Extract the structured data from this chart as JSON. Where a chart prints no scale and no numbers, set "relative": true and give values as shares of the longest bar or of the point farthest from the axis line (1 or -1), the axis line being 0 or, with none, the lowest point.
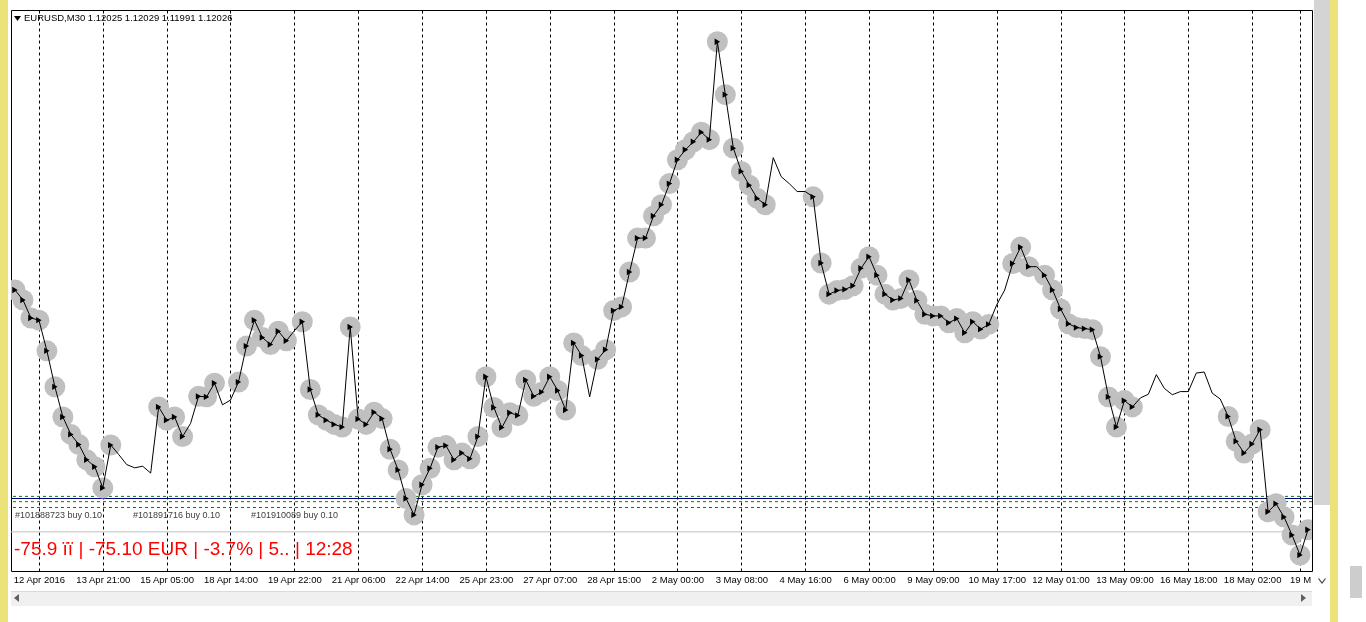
{
  "chart_data": {
    "type": "line",
    "relative": true,
    "grid": "x",
    "title": "EURUSD,M30 1.12025 1.12029 1.11991 1.12026",
    "annotations": [
      "-75.9 ïï | -75.10 EUR | -3.7% | 5.. | 12:28"
    ],
    "categories": [
      null,
      null,
      null,
      "12 Apr 2016",
      null,
      null,
      null,
      null,
      null,
      null,
      null,
      "13 Apr 21:00",
      null,
      null,
      null,
      null,
      null,
      null,
      null,
      "15 Apr 05:00",
      null,
      null,
      null,
      null,
      null,
      null,
      null,
      "18 Apr 14:00",
      null,
      null,
      null,
      null,
      null,
      null,
      null,
      "19 Apr 22:00",
      null,
      null,
      null,
      null,
      null,
      null,
      null,
      "21 Apr 06:00",
      null,
      null,
      null,
      null,
      null,
      null,
      null,
      "22 Apr 14:00",
      null,
      null,
      null,
      null,
      null,
      null,
      null,
      "25 Apr 23:00",
      null,
      null,
      null,
      null,
      null,
      null,
      null,
      "27 Apr 07:00",
      null,
      null,
      null,
      null,
      null,
      null,
      null,
      "28 Apr 15:00",
      null,
      null,
      null,
      null,
      null,
      null,
      null,
      "2 May 00:00",
      null,
      null,
      null,
      null,
      null,
      null,
      null,
      "3 May 08:00",
      null,
      null,
      null,
      null,
      null,
      null,
      null,
      "4 May 16:00",
      null,
      null,
      null,
      null,
      null,
      null,
      null,
      "6 May 00:00",
      null,
      null,
      null,
      null,
      null,
      null,
      null,
      "9 May 09:00",
      null,
      null,
      null,
      null,
      null,
      null,
      null,
      "10 May 17:00",
      null,
      null,
      null,
      null,
      null,
      null,
      null,
      "12 May 01:00",
      null,
      null,
      null,
      null,
      null,
      null,
      null,
      "13 May 09:00",
      null,
      null,
      null,
      null,
      null,
      null,
      null,
      "16 May 18:00",
      null,
      null,
      null,
      null,
      null,
      null,
      null,
      "18 May 02:00",
      null,
      null,
      null,
      null,
      null,
      "19 M",
      null
    ],
    "series": [
      {
        "type": "scatter",
        "color": "#c0c0c0",
        "marker": "circle",
        "values": [
          0.531,
          0.512,
          0.478,
          0.474,
          0.416,
          0.348,
          0.291,
          0.258,
          0.239,
          0.21,
          0.197,
          0.157,
          0.238,
          null,
          null,
          null,
          null,
          null,
          0.31,
          0.285,
          0.291,
          0.254,
          null,
          0.33,
          0.329,
          0.355,
          null,
          null,
          0.357,
          0.425,
          0.474,
          0.441,
          0.428,
          0.453,
          0.435,
          null,
          0.471,
          0.343,
          0.295,
          0.285,
          0.277,
          0.272,
          0.461,
          0.287,
          0.277,
          0.3,
          0.288,
          0.23,
          0.191,
          0.137,
          0.106,
          0.163,
          0.194,
          0.234,
          0.237,
          0.21,
          0.223,
          0.212,
          0.254,
          0.367,
          0.309,
          0.271,
          0.299,
          0.294,
          0.361,
          0.33,
          0.338,
          0.367,
          0.341,
          0.304,
          0.431,
          0.407,
          null,
          0.4,
          0.418,
          0.492,
          0.499,
          0.565,
          0.629,
          0.629,
          0.671,
          0.692,
          0.732,
          0.777,
          0.796,
          0.811,
          0.829,
          0.815,
          1.0,
          0.9,
          0.799,
          0.755,
          0.729,
          0.704,
          0.692,
          null,
          null,
          null,
          null,
          null,
          0.707,
          0.582,
          0.523,
          0.53,
          0.532,
          0.539,
          0.572,
          0.594,
          0.559,
          0.523,
          0.512,
          0.515,
          0.55,
          0.511,
          0.485,
          0.482,
          0.482,
          0.469,
          0.477,
          0.45,
          0.471,
          0.457,
          0.466,
          null,
          null,
          0.581,
          0.612,
          0.575,
          null,
          0.559,
          0.531,
          0.495,
          0.467,
          0.46,
          0.458,
          0.456,
          0.405,
          0.329,
          0.272,
          0.322,
          0.31,
          null,
          null,
          null,
          null,
          null,
          null,
          null,
          null,
          null,
          null,
          null,
          0.292,
          0.245,
          0.223,
          0.24,
          0.267,
          0.112,
          0.127,
          0.102,
          0.068,
          0.03,
          0.078
        ]
      },
      {
        "color": "#000000",
        "values": [
          0.531,
          0.512,
          0.478,
          0.474,
          0.416,
          0.348,
          0.291,
          0.258,
          0.239,
          0.21,
          0.197,
          0.157,
          0.238,
          0.22,
          0.201,
          0.195,
          0.198,
          0.185,
          0.31,
          0.285,
          0.291,
          0.254,
          0.279,
          0.33,
          0.329,
          0.355,
          0.314,
          0.323,
          0.357,
          0.425,
          0.474,
          0.441,
          0.428,
          0.453,
          0.435,
          0.454,
          0.471,
          0.343,
          0.295,
          0.285,
          0.277,
          0.272,
          0.461,
          0.287,
          0.277,
          0.3,
          0.288,
          0.23,
          0.191,
          0.137,
          0.106,
          0.163,
          0.194,
          0.234,
          0.237,
          0.21,
          0.223,
          0.212,
          0.254,
          0.367,
          0.309,
          0.271,
          0.299,
          0.294,
          0.361,
          0.33,
          0.338,
          0.367,
          0.341,
          0.304,
          0.431,
          0.407,
          0.329,
          0.4,
          0.418,
          0.492,
          0.499,
          0.565,
          0.629,
          0.629,
          0.671,
          0.692,
          0.732,
          0.777,
          0.796,
          0.811,
          0.829,
          0.815,
          1.0,
          0.9,
          0.799,
          0.755,
          0.729,
          0.704,
          0.692,
          0.781,
          0.745,
          0.732,
          0.717,
          0.717,
          0.707,
          0.582,
          0.523,
          0.53,
          0.532,
          0.539,
          0.572,
          0.594,
          0.559,
          0.523,
          0.512,
          0.515,
          0.55,
          0.511,
          0.485,
          0.482,
          0.482,
          0.469,
          0.477,
          0.45,
          0.471,
          0.457,
          0.466,
          0.503,
          0.531,
          0.581,
          0.612,
          0.575,
          0.575,
          0.559,
          0.531,
          0.495,
          0.467,
          0.46,
          0.458,
          0.456,
          0.405,
          0.329,
          0.272,
          0.322,
          0.31,
          0.327,
          0.334,
          0.371,
          0.345,
          0.333,
          0.339,
          0.339,
          0.374,
          0.376,
          0.336,
          0.325,
          0.292,
          0.245,
          0.223,
          0.24,
          0.267,
          0.112,
          0.127,
          0.102,
          0.068,
          0.03,
          0.078
        ]
      },
      {
        "type": "scatter",
        "color": "#000000",
        "marker": "triangle",
        "values": [
          0.531,
          0.512,
          0.478,
          0.474,
          0.416,
          0.348,
          0.291,
          0.258,
          0.239,
          0.21,
          0.197,
          0.157,
          0.238,
          null,
          null,
          null,
          null,
          null,
          0.31,
          0.285,
          0.291,
          0.254,
          null,
          0.33,
          0.329,
          0.355,
          null,
          null,
          0.357,
          0.425,
          0.474,
          0.441,
          0.428,
          0.453,
          0.435,
          null,
          0.471,
          0.343,
          0.295,
          0.285,
          0.277,
          0.272,
          0.461,
          0.287,
          0.277,
          0.3,
          0.288,
          0.23,
          0.191,
          0.137,
          0.106,
          0.163,
          0.194,
          0.234,
          0.237,
          0.21,
          0.223,
          0.212,
          0.254,
          0.367,
          0.309,
          0.271,
          0.299,
          0.294,
          0.361,
          0.33,
          0.338,
          0.367,
          0.341,
          0.304,
          0.431,
          0.407,
          null,
          0.4,
          0.418,
          0.492,
          0.499,
          0.565,
          0.629,
          0.629,
          0.671,
          0.692,
          0.732,
          0.777,
          0.796,
          0.811,
          0.829,
          0.815,
          1.0,
          0.9,
          0.799,
          0.755,
          0.729,
          0.704,
          0.692,
          null,
          null,
          null,
          null,
          null,
          0.707,
          0.582,
          0.523,
          0.53,
          0.532,
          0.539,
          0.572,
          0.594,
          0.559,
          0.523,
          0.512,
          0.515,
          0.55,
          0.511,
          0.485,
          0.482,
          0.482,
          0.469,
          0.477,
          0.45,
          0.471,
          0.457,
          0.466,
          null,
          null,
          0.581,
          0.612,
          0.575,
          null,
          0.559,
          0.531,
          0.495,
          0.467,
          0.46,
          0.458,
          0.456,
          0.405,
          0.329,
          0.272,
          0.322,
          0.31,
          null,
          null,
          null,
          null,
          null,
          null,
          null,
          null,
          null,
          null,
          null,
          0.292,
          0.245,
          0.223,
          0.24,
          0.267,
          0.112,
          0.127,
          0.102,
          0.068,
          0.03,
          0.078
        ]
      }
    ],
    "ref_lines": [
      {
        "axis": "y",
        "value": 0.141,
        "label": "#101888723 buy 0.10",
        "color": "#008000",
        "line_style": "dashed"
      },
      {
        "axis": "y",
        "value": 0.137,
        "color": "#000080",
        "line_style": "solid"
      },
      {
        "axis": "y",
        "value": 0.131,
        "label": "#101891716 buy 0.10",
        "color": "#008000",
        "line_style": "dashed"
      },
      {
        "axis": "y",
        "value": 0.12,
        "label": "#101910089 buy 0.10",
        "color": "#008000",
        "line_style": "dashed"
      },
      {
        "axis": "y",
        "value": 0.074,
        "color": "#c0c0c0",
        "line_style": "solid"
      }
    ]
  }
}
